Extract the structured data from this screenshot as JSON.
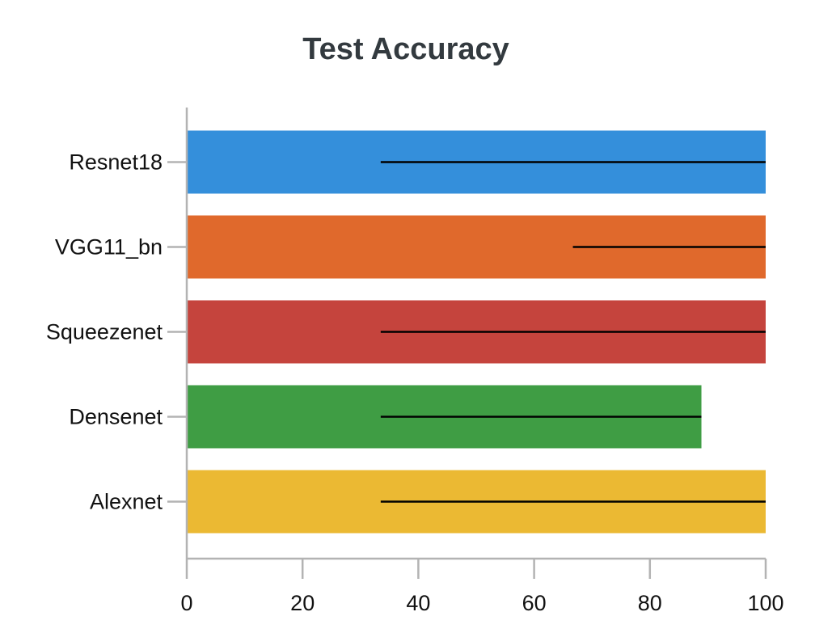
{
  "chart_data": {
    "type": "bar",
    "orientation": "horizontal",
    "title": "Test Accuracy",
    "xlabel": "",
    "ylabel": "",
    "categories": [
      "Resnet18",
      "VGG11_bn",
      "Squeezenet",
      "Densenet",
      "Alexnet"
    ],
    "values": [
      100,
      100,
      100,
      88.9,
      100
    ],
    "error_low": [
      33.5,
      66.7,
      33.5,
      33.5,
      33.5
    ],
    "error_high": [
      100,
      100,
      100,
      88.9,
      100
    ],
    "colors": [
      "#348fdb",
      "#e0692c",
      "#c5443d",
      "#3f9d44",
      "#ebb933"
    ],
    "xlim": [
      0,
      100
    ],
    "xticks": [
      "0",
      "20",
      "40",
      "60",
      "80",
      "100"
    ],
    "grid": false,
    "legend": "none"
  }
}
